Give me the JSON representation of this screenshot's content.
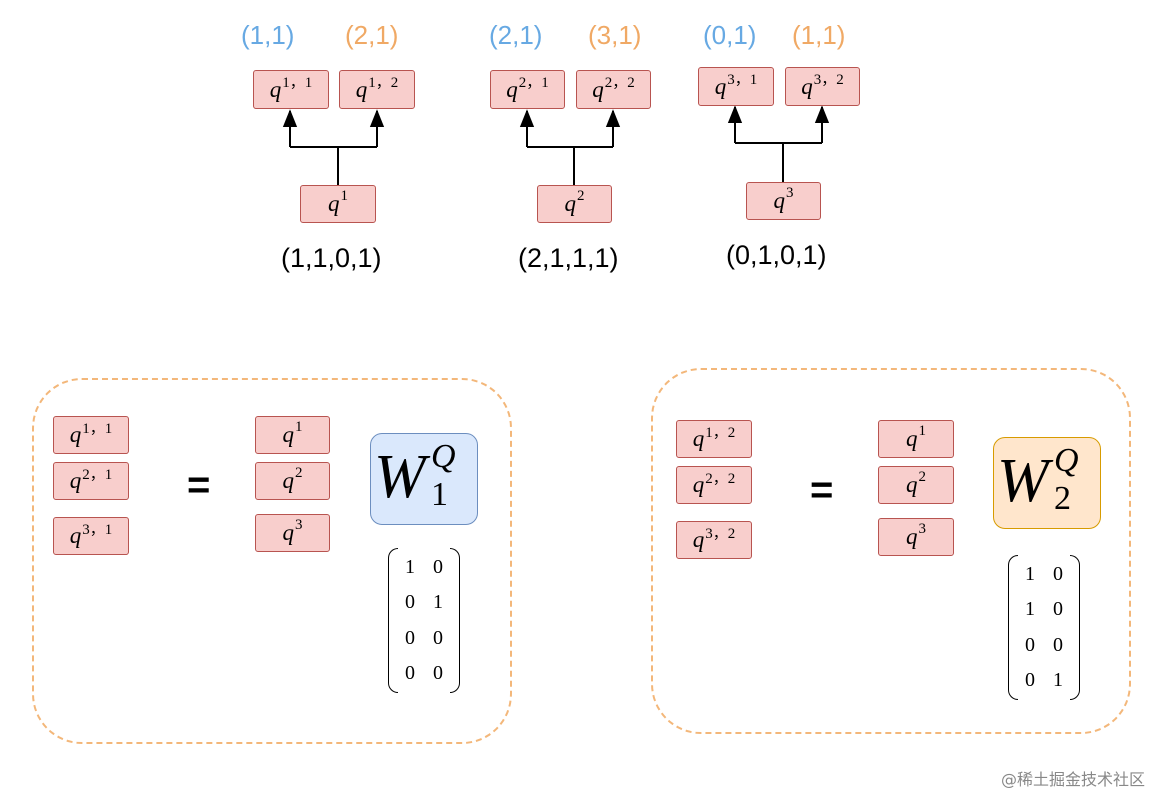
{
  "groups": [
    {
      "root": {
        "letter": "q",
        "sup": "1"
      },
      "left": {
        "letter": "q",
        "sup": "1，1"
      },
      "right": {
        "letter": "q",
        "sup": "1，2"
      },
      "coord_left": "(1,1)",
      "coord_right": "(2,1)",
      "vector": "(1,1,0,1)"
    },
    {
      "root": {
        "letter": "q",
        "sup": "2"
      },
      "left": {
        "letter": "q",
        "sup": "2，1"
      },
      "right": {
        "letter": "q",
        "sup": "2，2"
      },
      "coord_left": "(2,1)",
      "coord_right": "(3,1)",
      "vector": "(2,1,1,1)"
    },
    {
      "root": {
        "letter": "q",
        "sup": "3"
      },
      "left": {
        "letter": "q",
        "sup": "3，1"
      },
      "right": {
        "letter": "q",
        "sup": "3，2"
      },
      "coord_left": "(0,1)",
      "coord_right": "(1,1)",
      "vector": "(0,1,0,1)"
    }
  ],
  "panels": [
    {
      "lhs": [
        {
          "letter": "q",
          "sup": "1，1"
        },
        {
          "letter": "q",
          "sup": "2，1"
        },
        {
          "letter": "q",
          "sup": "3，1"
        }
      ],
      "equals": "=",
      "rhs": [
        {
          "letter": "q",
          "sup": "1"
        },
        {
          "letter": "q",
          "sup": "2"
        },
        {
          "letter": "q",
          "sup": "3"
        }
      ],
      "weight": {
        "base": "W",
        "sup": "Q",
        "sub": "1"
      },
      "matrix": [
        [
          "1",
          "0"
        ],
        [
          "0",
          "1"
        ],
        [
          "0",
          "0"
        ],
        [
          "0",
          "0"
        ]
      ]
    },
    {
      "lhs": [
        {
          "letter": "q",
          "sup": "1，2"
        },
        {
          "letter": "q",
          "sup": "2，2"
        },
        {
          "letter": "q",
          "sup": "3，2"
        }
      ],
      "equals": "=",
      "rhs": [
        {
          "letter": "q",
          "sup": "1"
        },
        {
          "letter": "q",
          "sup": "2"
        },
        {
          "letter": "q",
          "sup": "3"
        }
      ],
      "weight": {
        "base": "W",
        "sup": "Q",
        "sub": "2"
      },
      "matrix": [
        [
          "1",
          "0"
        ],
        [
          "1",
          "0"
        ],
        [
          "0",
          "0"
        ],
        [
          "0",
          "1"
        ]
      ]
    }
  ],
  "watermark": "@稀土掘金技术社区",
  "colors": {
    "node_fill": "#f8cecc",
    "node_stroke": "#b85450",
    "coord_blue": "#67a9e3",
    "coord_orange": "#f0a965",
    "w1_fill": "#dae8fc",
    "w2_fill": "#ffe6cc",
    "panel_dash": "#f3b77a"
  }
}
